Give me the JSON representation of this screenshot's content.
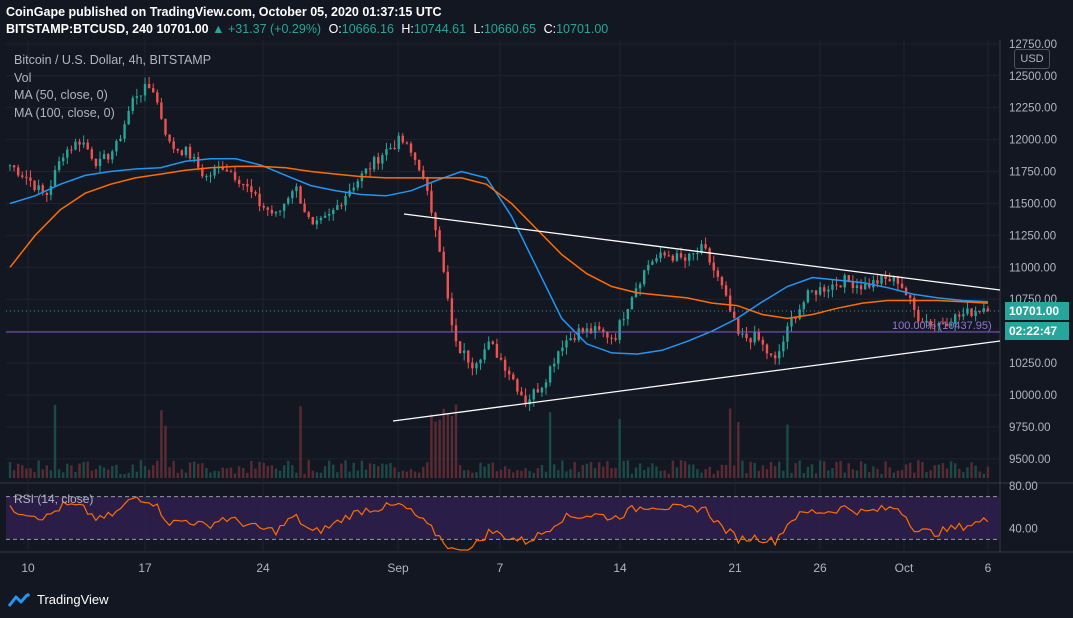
{
  "header": {
    "publisher_line": "CoinGape published on TradingView.com, October 05, 2020 01:37:15 UTC",
    "symbol": "BITSTAMP:BTCUSD, 240",
    "last": "10701.00",
    "change": "▲ +31.37 (+0.29%)",
    "o_label": "O:",
    "o": "10666.16",
    "h_label": "H:",
    "h": "10744.61",
    "l_label": "L:",
    "l": "10660.65",
    "c_label": "C:",
    "c": "10701.00"
  },
  "legend": {
    "title": "Bitcoin / U.S. Dollar, 4h, BITSTAMP",
    "vol": "Vol",
    "ma50": "MA (50, close, 0)",
    "ma100": "MA (100, close, 0)"
  },
  "currency_button": "USD",
  "last_price_tag": "10701.00",
  "countdown_tag": "02:22:47",
  "fib_label": "100.00% (10437.95)",
  "rsi_label": "RSI (14, close)",
  "brand": "TradingView",
  "colors": {
    "background": "#131722",
    "up": "#26a69a",
    "down": "#ef5350",
    "ma50": "#2196f3",
    "ma100": "#ff6d00",
    "rsi": "#ff6d00",
    "rsi_band": "#2d1e4d",
    "trendline": "#ffffff",
    "fib_line": "#7e57c2"
  },
  "chart_data": [
    {
      "type": "candlestick",
      "title": "Bitcoin / U.S. Dollar, 4h, BITSTAMP",
      "y_ticks": [
        9500,
        9750,
        10000,
        10250,
        10500,
        10750,
        11000,
        11250,
        11500,
        11750,
        12000,
        12250,
        12500,
        12750
      ],
      "y_tick_labels": [
        "9500.00",
        "9750.00",
        "10000.00",
        "10250.00",
        "10500.00",
        "10750.00",
        "11000.00",
        "11250.00",
        "11500.00",
        "11750.00",
        "12000.00",
        "12250.00",
        "12500.00",
        "12750.00"
      ],
      "ylim": [
        9350,
        12780
      ],
      "x_ticks": [
        "10",
        "17",
        "24",
        "Sep",
        "7",
        "14",
        "21",
        "26",
        "Oct",
        "6"
      ],
      "series": [
        {
          "name": "MA (50, close, 0)",
          "values": [
            11500,
            11560,
            11650,
            11720,
            11750,
            11770,
            11780,
            11830,
            11850,
            11850,
            11800,
            11720,
            11640,
            11600,
            11570,
            11560,
            11600,
            11680,
            11750,
            11700,
            11400,
            11000,
            10600,
            10400,
            10330,
            10320,
            10350,
            10420,
            10500,
            10600,
            10730,
            10850,
            10920,
            10900,
            10880,
            10840,
            10790,
            10760,
            10740,
            10730
          ]
        },
        {
          "name": "MA (100, close, 0)",
          "values": [
            11000,
            11250,
            11450,
            11580,
            11650,
            11700,
            11730,
            11760,
            11780,
            11790,
            11790,
            11780,
            11750,
            11730,
            11710,
            11700,
            11700,
            11700,
            11700,
            11650,
            11500,
            11300,
            11100,
            10950,
            10850,
            10800,
            10780,
            10760,
            10720,
            10700,
            10630,
            10600,
            10630,
            10680,
            10720,
            10740,
            10740,
            10740,
            10730,
            10720
          ]
        }
      ],
      "ohlc_path": [
        11800,
        11700,
        11550,
        11900,
        12000,
        11800,
        11950,
        12350,
        12420,
        11950,
        11900,
        11700,
        11800,
        11680,
        11500,
        11400,
        11650,
        11300,
        11400,
        11600,
        11750,
        11900,
        12000,
        11800,
        11300,
        10400,
        10250,
        10400,
        10200,
        9950,
        10100,
        10400,
        10500,
        10500,
        10450,
        10800,
        11050,
        11100,
        11050,
        11150,
        10850,
        10450,
        10450,
        10250,
        10600,
        10800,
        10850,
        10900,
        10850,
        10900,
        10900,
        10620,
        10550,
        10600,
        10650,
        10700
      ]
    },
    {
      "type": "line",
      "title": "RSI (14, close)",
      "y_ticks": [
        40,
        80
      ],
      "y_tick_labels": [
        "40.00",
        "80.00"
      ],
      "ylim": [
        20,
        80
      ],
      "series": [
        {
          "name": "RSI (14, close)",
          "values": [
            58,
            55,
            50,
            62,
            60,
            48,
            55,
            70,
            66,
            45,
            48,
            42,
            50,
            46,
            40,
            38,
            52,
            36,
            42,
            52,
            58,
            60,
            62,
            50,
            35,
            18,
            22,
            38,
            32,
            28,
            36,
            50,
            52,
            53,
            50,
            58,
            62,
            60,
            58,
            60,
            42,
            30,
            32,
            28,
            50,
            56,
            56,
            60,
            55,
            58,
            60,
            38,
            36,
            40,
            44,
            48
          ]
        }
      ]
    }
  ]
}
